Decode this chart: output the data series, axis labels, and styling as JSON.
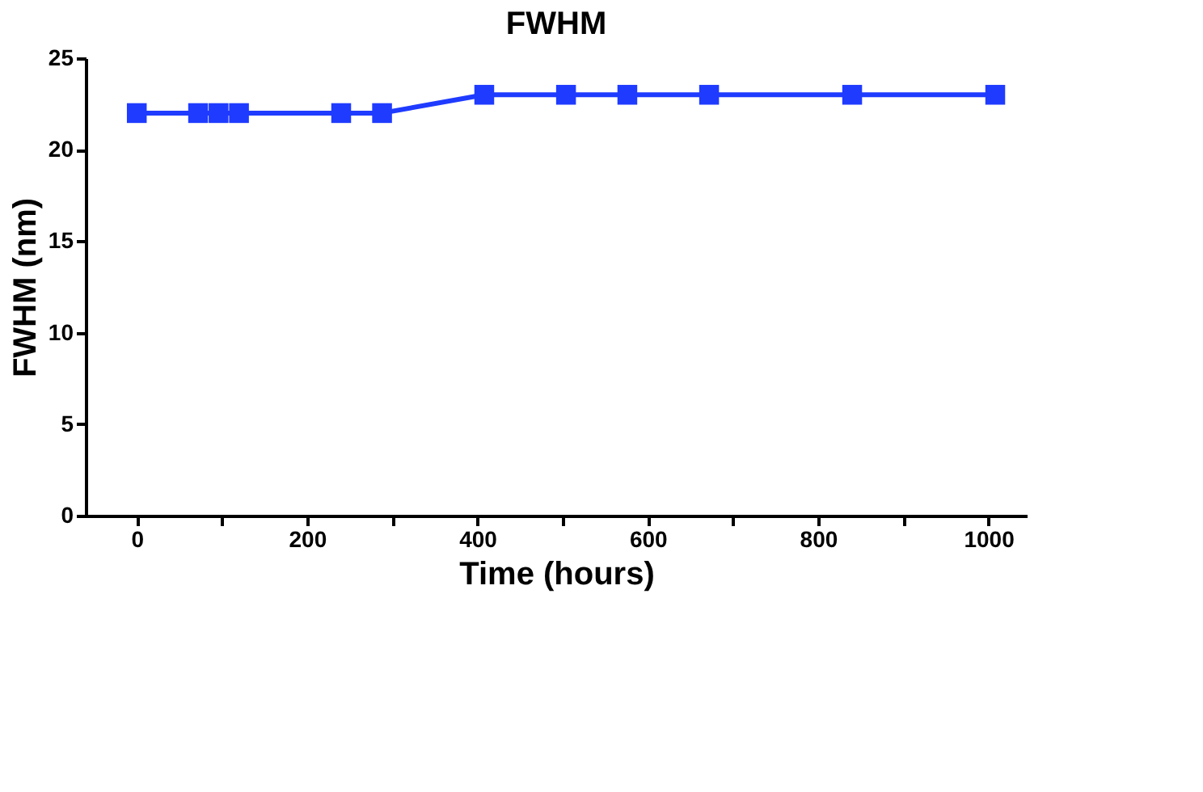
{
  "chart_data": {
    "type": "line",
    "title": "FWHM",
    "xlabel": "Time (hours)",
    "ylabel": "FWHM (nm)",
    "x": [
      0,
      72,
      96,
      120,
      240,
      288,
      408,
      504,
      576,
      672,
      840,
      1008
    ],
    "series": [
      {
        "color": "#1f3bff",
        "values": [
          22,
          22,
          22,
          22,
          22,
          22,
          23,
          23,
          23,
          23,
          23,
          23
        ]
      }
    ],
    "xlim": [
      -60,
      1045
    ],
    "ylim": [
      0,
      25
    ],
    "xticks": [
      0,
      {
        "value": 100,
        "label": null
      },
      200,
      {
        "value": 300,
        "label": null
      },
      400,
      {
        "value": 500,
        "label": null
      },
      600,
      {
        "value": 700,
        "label": null
      },
      800,
      {
        "value": 900,
        "label": null
      },
      1000
    ],
    "yticks": [
      0,
      5,
      10,
      15,
      20,
      25
    ],
    "grid": false,
    "marker": "square",
    "line_style": "solid"
  }
}
